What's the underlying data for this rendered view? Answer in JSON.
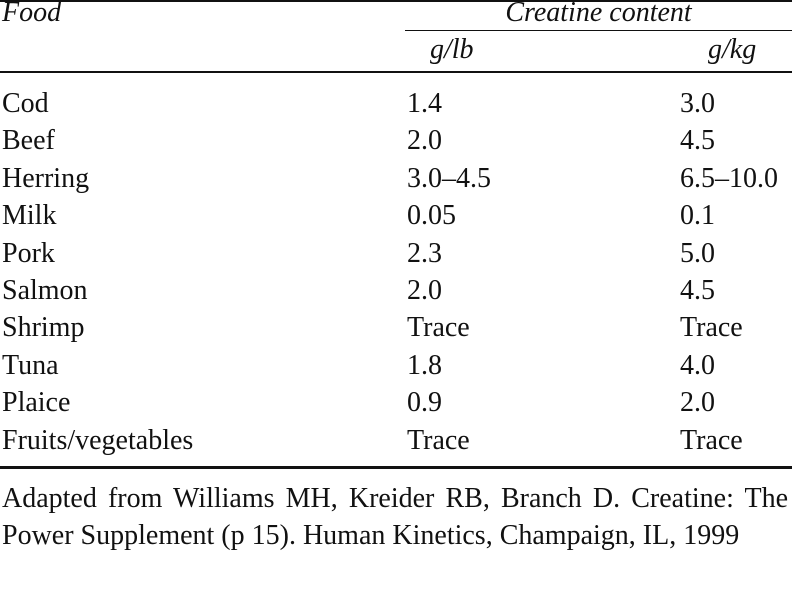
{
  "header": {
    "food": "Food",
    "group": "Creatine content",
    "units": [
      "g/lb",
      "g/kg"
    ]
  },
  "table": {
    "rows": [
      [
        "Cod",
        "1.4",
        "3.0"
      ],
      [
        "Beef",
        "2.0",
        "4.5"
      ],
      [
        "Herring",
        "3.0–4.5",
        "6.5–10.0"
      ],
      [
        "Milk",
        "0.05",
        "0.1"
      ],
      [
        "Pork",
        "2.3",
        "5.0"
      ],
      [
        "Salmon",
        "2.0",
        "4.5"
      ],
      [
        "Shrimp",
        "Trace",
        "Trace"
      ],
      [
        "Tuna",
        "1.8",
        "4.0"
      ],
      [
        "Plaice",
        "0.9",
        "2.0"
      ],
      [
        "Fruits/vegetables",
        "Trace",
        "Trace"
      ]
    ]
  },
  "footnote": "Adapted from Williams MH, Kreider RB, Branch D. Creatine: The Power Supplement (p 15). Human Kinetics, Champaign, IL, 1999"
}
